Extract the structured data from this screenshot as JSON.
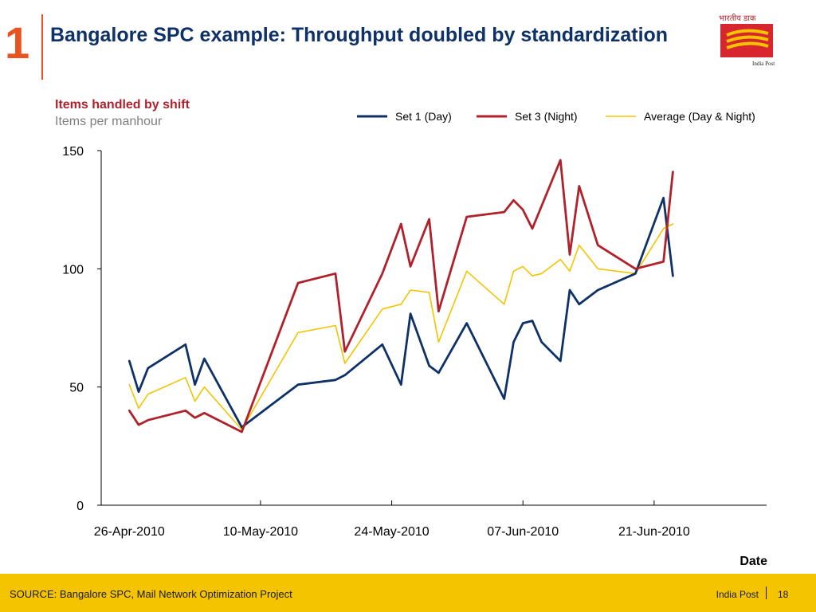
{
  "header": {
    "slide_number": "1",
    "title": "Bangalore SPC example: Throughput doubled by standardization",
    "logo_label": "India Post",
    "logo_script": "भारतीय डाक"
  },
  "footer": {
    "source": "SOURCE: Bangalore SPC, Mail Network Optimization Project",
    "brand": "India Post",
    "page_number": "18"
  },
  "colors": {
    "accent": "#e8531f",
    "title": "#0e3267",
    "footer_bg": "#f5c400",
    "set1": "#0e3267",
    "set3": "#b0212b",
    "average": "#f5c400",
    "chart_title": "#b0212b",
    "chart_subtitle": "#7f7f7f"
  },
  "chart_data": {
    "type": "line",
    "title": "Items handled by shift",
    "subtitle": "Items per manhour",
    "xlabel": "Date",
    "ylabel": "",
    "ylim": [
      0,
      150
    ],
    "yticks": [
      0,
      50,
      100,
      150
    ],
    "x_axis_type": "date",
    "xlim": [
      "2010-04-23",
      "2010-07-03"
    ],
    "x_ticks": [
      {
        "date": "2010-04-26",
        "label": "26-Apr-2010"
      },
      {
        "date": "2010-05-10",
        "label": "10-May-2010"
      },
      {
        "date": "2010-05-24",
        "label": "24-May-2010"
      },
      {
        "date": "2010-06-07",
        "label": "07-Jun-2010"
      },
      {
        "date": "2010-06-21",
        "label": "21-Jun-2010"
      }
    ],
    "legend_position": "top-right",
    "grid": false,
    "series": [
      {
        "name": "Set 1 (Day)",
        "color": "#0e3267",
        "points": [
          [
            "2010-04-26",
            61
          ],
          [
            "2010-04-27",
            48
          ],
          [
            "2010-04-28",
            58
          ],
          [
            "2010-05-02",
            68
          ],
          [
            "2010-05-03",
            51
          ],
          [
            "2010-05-04",
            62
          ],
          [
            "2010-05-08",
            33
          ],
          [
            "2010-05-14",
            51
          ],
          [
            "2010-05-18",
            53
          ],
          [
            "2010-05-19",
            55
          ],
          [
            "2010-05-23",
            68
          ],
          [
            "2010-05-25",
            51
          ],
          [
            "2010-05-26",
            81
          ],
          [
            "2010-05-28",
            59
          ],
          [
            "2010-05-29",
            56
          ],
          [
            "2010-06-01",
            77
          ],
          [
            "2010-06-05",
            45
          ],
          [
            "2010-06-06",
            69
          ],
          [
            "2010-06-07",
            77
          ],
          [
            "2010-06-08",
            78
          ],
          [
            "2010-06-09",
            69
          ],
          [
            "2010-06-11",
            61
          ],
          [
            "2010-06-12",
            91
          ],
          [
            "2010-06-13",
            85
          ],
          [
            "2010-06-15",
            91
          ],
          [
            "2010-06-19",
            98
          ],
          [
            "2010-06-22",
            130
          ],
          [
            "2010-06-23",
            97
          ]
        ]
      },
      {
        "name": "Set 3 (Night)",
        "color": "#b0212b",
        "points": [
          [
            "2010-04-26",
            40
          ],
          [
            "2010-04-27",
            34
          ],
          [
            "2010-04-28",
            36
          ],
          [
            "2010-05-02",
            40
          ],
          [
            "2010-05-03",
            37
          ],
          [
            "2010-05-04",
            39
          ],
          [
            "2010-05-08",
            31
          ],
          [
            "2010-05-14",
            94
          ],
          [
            "2010-05-18",
            98
          ],
          [
            "2010-05-19",
            65
          ],
          [
            "2010-05-23",
            98
          ],
          [
            "2010-05-25",
            119
          ],
          [
            "2010-05-26",
            101
          ],
          [
            "2010-05-28",
            121
          ],
          [
            "2010-05-29",
            82
          ],
          [
            "2010-06-01",
            122
          ],
          [
            "2010-06-05",
            124
          ],
          [
            "2010-06-06",
            129
          ],
          [
            "2010-06-07",
            125
          ],
          [
            "2010-06-08",
            117
          ],
          [
            "2010-06-11",
            146
          ],
          [
            "2010-06-12",
            106
          ],
          [
            "2010-06-13",
            135
          ],
          [
            "2010-06-15",
            110
          ],
          [
            "2010-06-19",
            100
          ],
          [
            "2010-06-22",
            103
          ],
          [
            "2010-06-23",
            141
          ]
        ]
      },
      {
        "name": "Average (Day & Night)",
        "color": "#f5c400",
        "points": [
          [
            "2010-04-26",
            51
          ],
          [
            "2010-04-27",
            41
          ],
          [
            "2010-04-28",
            47
          ],
          [
            "2010-05-02",
            54
          ],
          [
            "2010-05-03",
            44
          ],
          [
            "2010-05-04",
            50
          ],
          [
            "2010-05-08",
            32
          ],
          [
            "2010-05-14",
            73
          ],
          [
            "2010-05-18",
            76
          ],
          [
            "2010-05-19",
            60
          ],
          [
            "2010-05-23",
            83
          ],
          [
            "2010-05-25",
            85
          ],
          [
            "2010-05-26",
            91
          ],
          [
            "2010-05-28",
            90
          ],
          [
            "2010-05-29",
            69
          ],
          [
            "2010-06-01",
            99
          ],
          [
            "2010-06-05",
            85
          ],
          [
            "2010-06-06",
            99
          ],
          [
            "2010-06-07",
            101
          ],
          [
            "2010-06-08",
            97
          ],
          [
            "2010-06-09",
            98
          ],
          [
            "2010-06-11",
            104
          ],
          [
            "2010-06-12",
            99
          ],
          [
            "2010-06-13",
            110
          ],
          [
            "2010-06-15",
            100
          ],
          [
            "2010-06-19",
            98
          ],
          [
            "2010-06-22",
            117
          ],
          [
            "2010-06-23",
            119
          ]
        ]
      }
    ]
  }
}
